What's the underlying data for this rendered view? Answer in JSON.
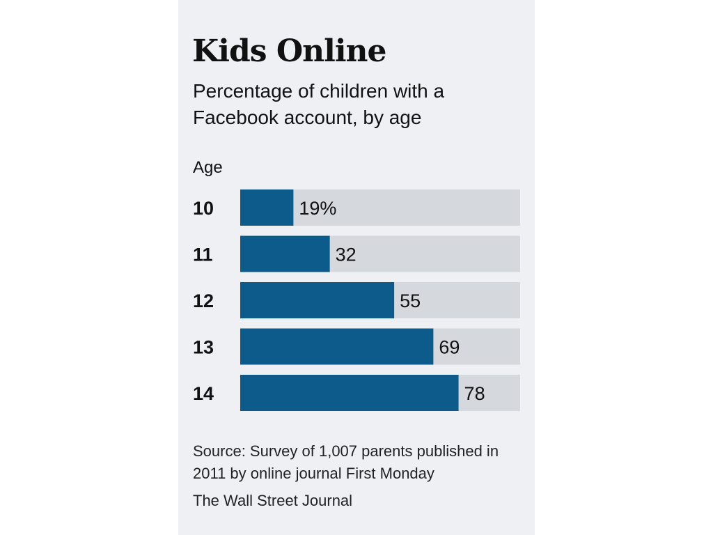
{
  "chart_data": {
    "type": "bar",
    "orientation": "horizontal",
    "title": "Kids Online",
    "subtitle": "Percentage of children with a Facebook account, by age",
    "ylabel": "Age",
    "xlabel": "",
    "categories": [
      "10",
      "11",
      "12",
      "13",
      "14"
    ],
    "values": [
      19,
      32,
      55,
      69,
      78
    ],
    "value_labels": [
      "19%",
      "32",
      "55",
      "69",
      "78"
    ],
    "xlim": [
      0,
      100
    ],
    "grid": false,
    "legend": "none",
    "colors": {
      "bar": "#0d5b8a",
      "track": "#d5d9de"
    }
  },
  "source": "Source: Survey of 1,007 parents published in 2011 by online journal First Monday",
  "credit": "The Wall Street Journal"
}
